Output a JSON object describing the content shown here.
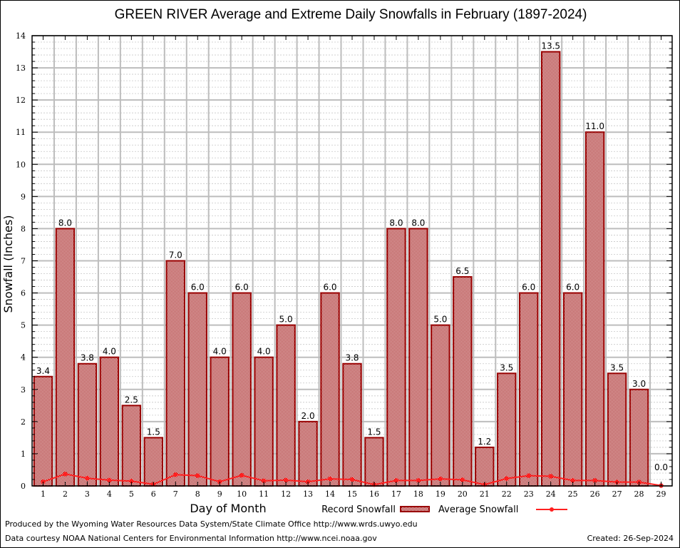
{
  "chart_data": {
    "type": "bar",
    "title": "GREEN RIVER Average and Extreme Daily Snowfalls in February (1897-2024)",
    "xlabel": "Day of Month",
    "ylabel": "Snowfall (Inches)",
    "ylim": [
      0,
      14
    ],
    "yticks": [
      "0",
      "1",
      "2",
      "3",
      "4",
      "5",
      "6",
      "7",
      "8",
      "9",
      "10",
      "11",
      "12",
      "13",
      "14"
    ],
    "grid": true,
    "legend_position": "bottom-center",
    "categories": [
      "1",
      "2",
      "3",
      "4",
      "5",
      "6",
      "7",
      "8",
      "9",
      "10",
      "11",
      "12",
      "13",
      "14",
      "15",
      "16",
      "17",
      "18",
      "19",
      "20",
      "21",
      "22",
      "23",
      "24",
      "25",
      "26",
      "27",
      "28",
      "29"
    ],
    "series": [
      {
        "name": "Record Snowfall",
        "kind": "bar",
        "color": "#990000",
        "values": [
          3.4,
          8.0,
          3.8,
          4.0,
          2.5,
          1.5,
          7.0,
          6.0,
          4.0,
          6.0,
          4.0,
          5.0,
          2.0,
          6.0,
          3.8,
          1.5,
          8.0,
          8.0,
          5.0,
          6.5,
          1.2,
          3.5,
          6.0,
          13.5,
          6.0,
          11.0,
          3.5,
          3.0,
          0.0
        ],
        "labels": [
          "3.4",
          "8.0",
          "3.8",
          "4.0",
          "2.5",
          "1.5",
          "7.0",
          "6.0",
          "4.0",
          "6.0",
          "4.0",
          "5.0",
          "2.0",
          "6.0",
          "3.8",
          "1.5",
          "8.0",
          "8.0",
          "5.0",
          "6.5",
          "1.2",
          "3.5",
          "6.0",
          "13.5",
          "6.0",
          "11.0",
          "3.5",
          "3.0",
          "0.0"
        ]
      },
      {
        "name": "Average Snowfall",
        "kind": "line",
        "color": "#ff2020",
        "values": [
          0.13,
          0.37,
          0.24,
          0.18,
          0.15,
          0.05,
          0.35,
          0.32,
          0.13,
          0.33,
          0.16,
          0.18,
          0.13,
          0.22,
          0.2,
          0.04,
          0.17,
          0.17,
          0.22,
          0.19,
          0.04,
          0.23,
          0.32,
          0.3,
          0.17,
          0.17,
          0.12,
          0.12,
          0.01
        ]
      }
    ]
  },
  "footer": {
    "produced_by": "Produced by the Wyoming Water Resources Data System/State Climate Office http://www.wrds.uwyo.edu",
    "data_courtesy": "Data courtesy NOAA National Centers for Environmental Information http://www.ncei.noaa.gov",
    "created": "Created: 26-Sep-2024"
  }
}
